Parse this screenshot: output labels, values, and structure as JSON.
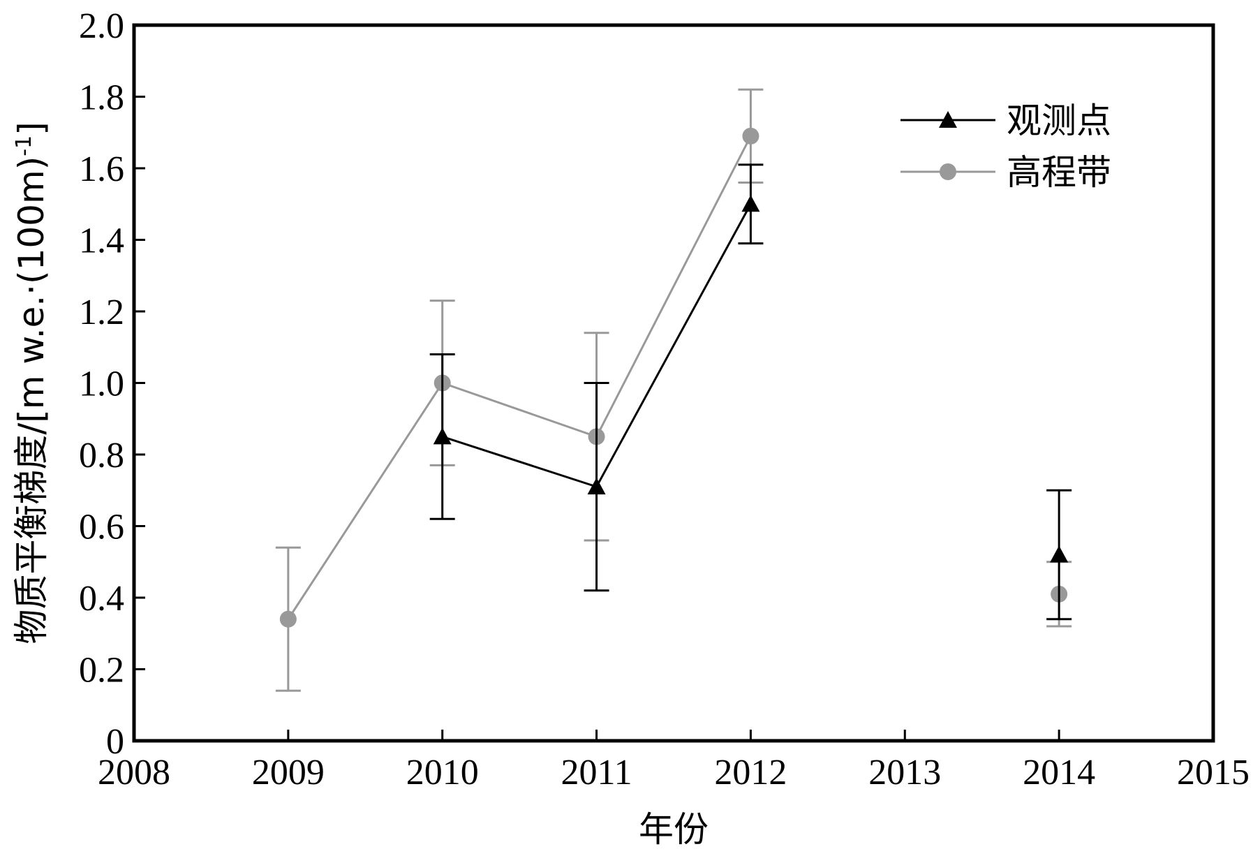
{
  "chart_data": {
    "type": "line",
    "xlabel": "年份",
    "ylabel": "物质平衡梯度/[m w.e.·(100m)",
    "ylabel_superscript": "-1",
    "ylabel_close": "]",
    "xlim": [
      2008,
      2015
    ],
    "ylim": [
      0,
      2.0
    ],
    "x_ticks": [
      "2008",
      "2009",
      "2010",
      "2011",
      "2012",
      "2013",
      "2014",
      "2015"
    ],
    "y_ticks": [
      "0",
      "0.2",
      "0.4",
      "0.6",
      "0.8",
      "1.0",
      "1.2",
      "1.4",
      "1.6",
      "1.8",
      "2.0"
    ],
    "legend_position": "top-right",
    "grid": false,
    "series": [
      {
        "name": "观测点",
        "color": "#000000",
        "marker": "triangle",
        "segments": [
          [
            {
              "x": 2010,
              "y": 0.85,
              "err_low": 0.62,
              "err_high": 1.08
            },
            {
              "x": 2011,
              "y": 0.71,
              "err_low": 0.42,
              "err_high": 1.0
            },
            {
              "x": 2012,
              "y": 1.5,
              "err_low": 1.39,
              "err_high": 1.61
            }
          ],
          [
            {
              "x": 2014,
              "y": 0.52,
              "err_low": 0.34,
              "err_high": 0.7
            }
          ]
        ]
      },
      {
        "name": "高程带",
        "color": "#999999",
        "marker": "circle",
        "segments": [
          [
            {
              "x": 2009,
              "y": 0.34,
              "err_low": 0.14,
              "err_high": 0.54
            },
            {
              "x": 2010,
              "y": 1.0,
              "err_low": 0.77,
              "err_high": 1.23
            },
            {
              "x": 2011,
              "y": 0.85,
              "err_low": 0.56,
              "err_high": 1.14
            },
            {
              "x": 2012,
              "y": 1.69,
              "err_low": 1.56,
              "err_high": 1.82
            }
          ],
          [
            {
              "x": 2014,
              "y": 0.41,
              "err_low": 0.32,
              "err_high": 0.5
            }
          ]
        ]
      }
    ]
  }
}
